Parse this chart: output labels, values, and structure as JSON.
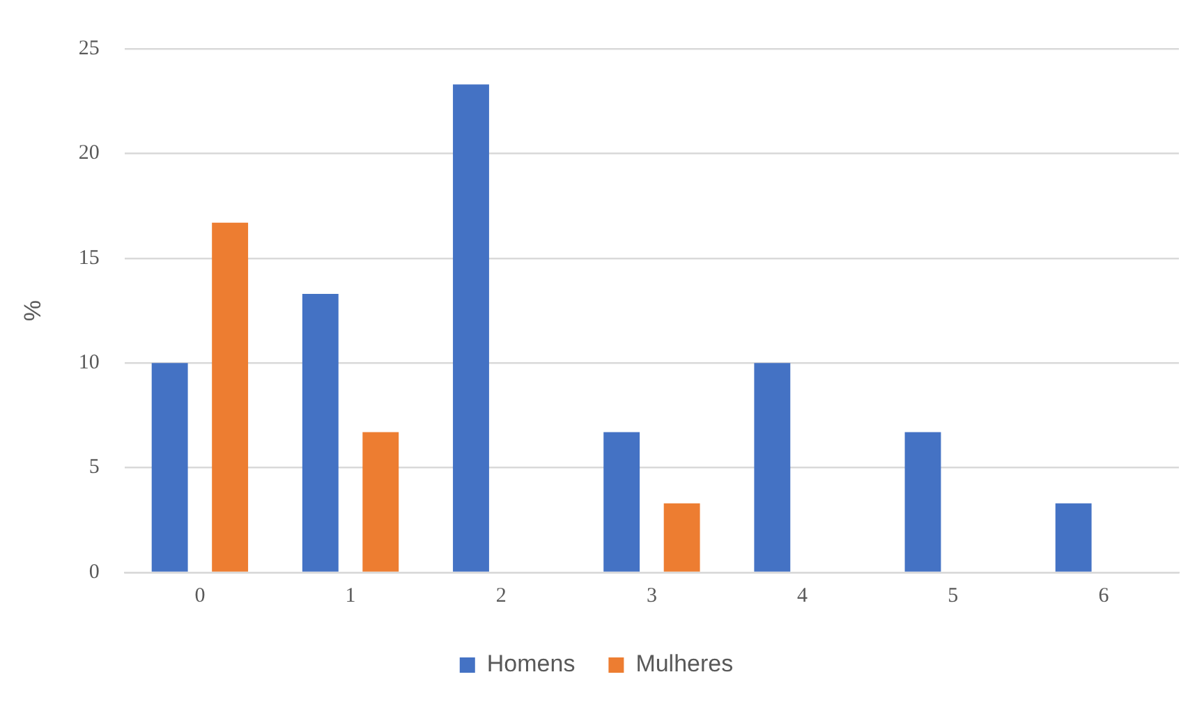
{
  "chart_data": {
    "type": "bar",
    "ylabel": "%",
    "categories": [
      "0",
      "1",
      "2",
      "3",
      "4",
      "5",
      "6"
    ],
    "series": [
      {
        "name": "Homens",
        "color": "#4472c4",
        "values": [
          10,
          13.3,
          23.3,
          6.7,
          10,
          6.7,
          3.3
        ]
      },
      {
        "name": "Mulheres",
        "color": "#ed7d31",
        "values": [
          16.7,
          6.7,
          0,
          3.3,
          0,
          0,
          0
        ]
      }
    ],
    "ylim": [
      0,
      25
    ],
    "yticks": [
      0,
      5,
      10,
      15,
      20,
      25
    ],
    "grid": "y",
    "legend": "bottom"
  }
}
